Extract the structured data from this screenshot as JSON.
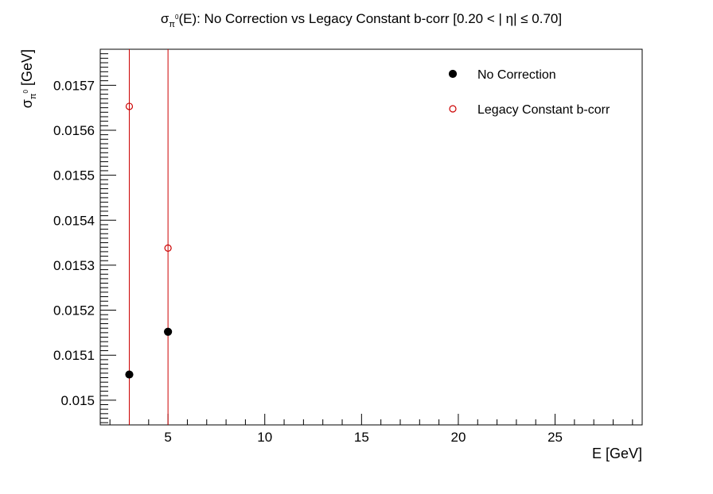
{
  "chart_data": {
    "type": "scatter",
    "title": {
      "sigma": "σ",
      "sub": "π",
      "sup": "0",
      "rest": "(E): No Correction vs Legacy Constant b-corr   [0.20 < |     η| ≤ 0.70]"
    },
    "xlabel": "E [GeV]",
    "ylabel": {
      "sigma": "σ",
      "sub": "π",
      "sup": "0",
      "rest": " [GeV]"
    },
    "xlim": [
      1.5,
      29.5
    ],
    "ylim": [
      0.015,
      0.01578
    ],
    "ylim_min": 0.014945,
    "x_ticks": [
      5,
      10,
      15,
      20,
      25
    ],
    "x_tick_labels": [
      "5",
      "10",
      "15",
      "20",
      "25"
    ],
    "y_ticks": [
      0.015,
      0.0151,
      0.0152,
      0.0153,
      0.0154,
      0.0155,
      0.0156,
      0.0157
    ],
    "y_tick_labels": [
      "0.015",
      "0.0151",
      "0.0152",
      "0.0153",
      "0.0154",
      "0.0155",
      "0.0156",
      "0.0157"
    ],
    "vertical_lines": [
      3,
      5
    ],
    "vertical_line_color": "#cc0000",
    "grid": false,
    "legend_position": "top-right",
    "series": [
      {
        "name": "No Correction",
        "marker": "filled-circle",
        "color": "#000000",
        "x": [
          3,
          5
        ],
        "y": [
          0.015057,
          0.015152
        ]
      },
      {
        "name": "Legacy Constant b-corr",
        "marker": "open-circle",
        "color": "#cc0000",
        "x": [
          3,
          5
        ],
        "y": [
          0.015653,
          0.015338
        ]
      }
    ]
  }
}
